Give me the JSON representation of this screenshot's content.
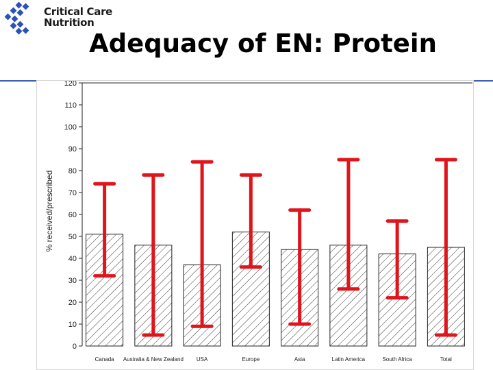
{
  "header": {
    "brand_line1": "Critical Care",
    "brand_line2": "Nutrition",
    "title": "Adequacy of EN: Protein",
    "logo_icon": "diamond-grid-logo-icon",
    "brand_color": "#2a52b8",
    "rule_color": "#3a5fb0"
  },
  "chart_data": {
    "type": "bar",
    "title": "Adequacy of EN: Protein",
    "xlabel": "",
    "ylabel": "% received/prescribed",
    "ylim": [
      0,
      120
    ],
    "yticks": [
      0,
      10,
      20,
      30,
      40,
      50,
      60,
      70,
      80,
      90,
      100,
      110,
      120
    ],
    "grid": false,
    "bar_fill": "hatched",
    "error_color": "#e0141b",
    "categories": [
      "Canada",
      "Australia & New Zealand",
      "USA",
      "Europe",
      "Asia",
      "Latin America",
      "South Africa",
      "Total"
    ],
    "values": [
      51,
      46,
      37,
      52,
      44,
      46,
      42,
      45
    ],
    "error_low": [
      32,
      5,
      9,
      36,
      10,
      26,
      22,
      5
    ],
    "error_high": [
      74,
      78,
      84,
      78,
      62,
      85,
      57,
      85
    ]
  }
}
